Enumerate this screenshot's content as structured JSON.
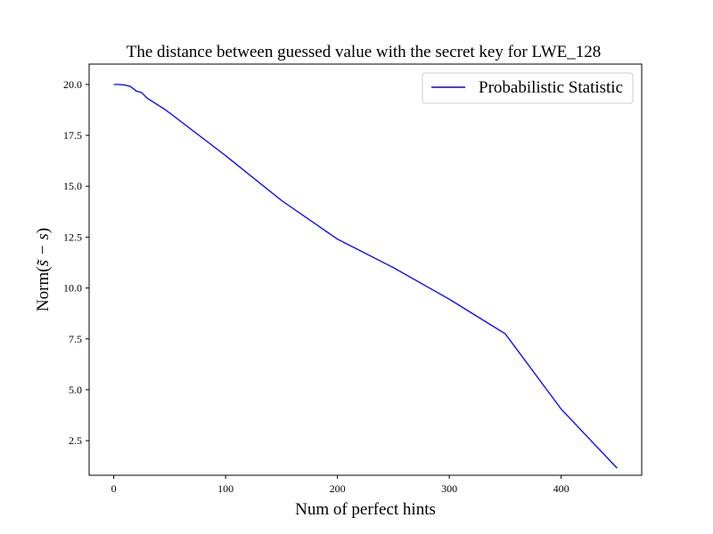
{
  "chart_data": {
    "type": "line",
    "title": "The distance between guessed value with the secret key for LWE_128",
    "xlabel": "Num of perfect hints",
    "ylabel_prefix": "Norm(",
    "ylabel_math": "s̃ − s",
    "ylabel_suffix": ")",
    "xlim": [
      -22,
      472
    ],
    "ylim": [
      0.8,
      21.0
    ],
    "x_ticks": [
      0,
      100,
      200,
      300,
      400
    ],
    "x_tick_labels": [
      "0",
      "100",
      "200",
      "300",
      "400"
    ],
    "y_ticks": [
      2.5,
      5.0,
      7.5,
      10.0,
      12.5,
      15.0,
      17.5,
      20.0
    ],
    "y_tick_labels": [
      "2.5",
      "5.0",
      "7.5",
      "10.0",
      "12.5",
      "15.0",
      "17.5",
      "20.0"
    ],
    "grid": false,
    "legend_position": "top-right",
    "series": [
      {
        "name": "Probabilistic Statistic",
        "color": "#0000ff",
        "x": [
          0,
          5,
          10,
          15,
          20,
          25,
          30,
          35,
          40,
          45,
          50,
          100,
          150,
          200,
          250,
          300,
          350,
          400,
          450
        ],
        "y": [
          20.0,
          20.0,
          19.97,
          19.9,
          19.68,
          19.6,
          19.32,
          19.15,
          18.97,
          18.8,
          18.6,
          16.5,
          14.3,
          12.4,
          11.0,
          9.45,
          7.75,
          4.05,
          1.15
        ]
      }
    ]
  }
}
